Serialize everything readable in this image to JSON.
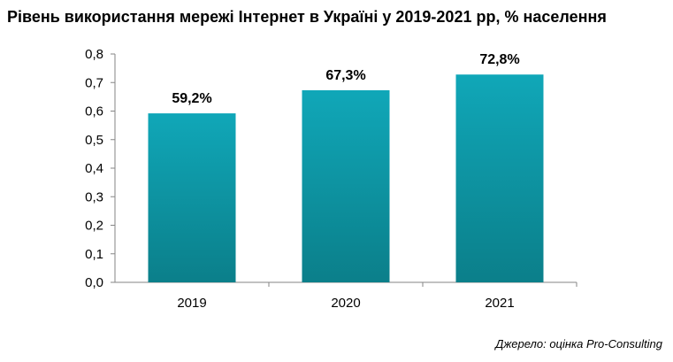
{
  "title": "Рівень використання мережі Інтернет в Україні у 2019-2021 рр, % населення",
  "source": "Джерело: оцінка Pro-Consulting",
  "chart_data": {
    "type": "bar",
    "title": "Рівень використання мережі Інтернет в Україні у 2019-2021 рр, % населення",
    "categories": [
      "2019",
      "2020",
      "2021"
    ],
    "values": [
      0.592,
      0.673,
      0.728
    ],
    "data_labels": [
      "59,2%",
      "67,3%",
      "72,8%"
    ],
    "y_ticks": [
      "0,0",
      "0,1",
      "0,2",
      "0,3",
      "0,4",
      "0,5",
      "0,6",
      "0,7",
      "0,8"
    ],
    "ylim": [
      0,
      0.8
    ],
    "grid": false,
    "legend": "none",
    "bar_color_top": "#10a7b8",
    "bar_color_bottom": "#0b7f8a"
  }
}
